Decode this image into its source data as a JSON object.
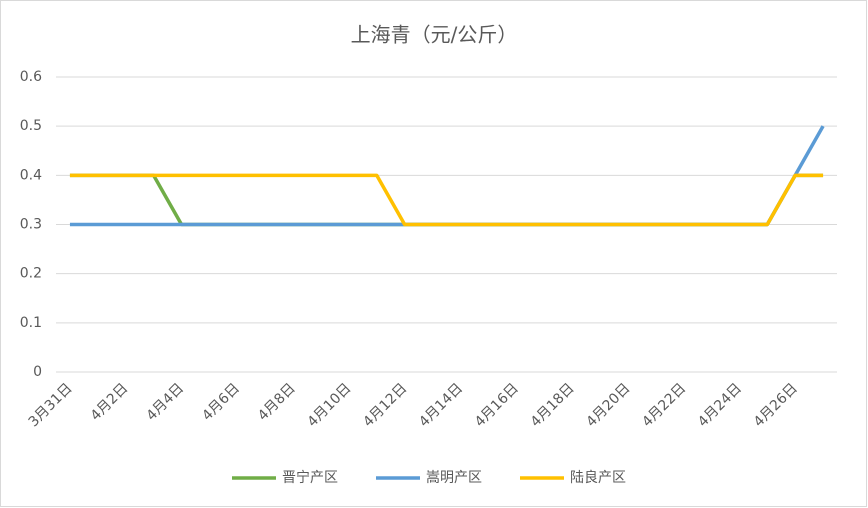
{
  "chart_data": {
    "type": "line",
    "title": "上海青（元/公斤）",
    "categories": [
      "3月31日",
      null,
      "4月2日",
      null,
      "4月4日",
      null,
      "4月6日",
      null,
      "4月8日",
      null,
      "4月10日",
      null,
      "4月12日",
      null,
      "4月14日",
      null,
      "4月16日",
      null,
      "4月18日",
      null,
      "4月20日",
      null,
      "4月22日",
      null,
      "4月24日",
      null,
      "4月26日",
      null
    ],
    "series": [
      {
        "name": "晋宁产区",
        "color": "#70ad47",
        "values": [
          0.4,
          0.4,
          0.4,
          0.4,
          0.3,
          0.3,
          0.3,
          0.3,
          0.3,
          0.3,
          0.3,
          0.3,
          0.3,
          0.3,
          0.3,
          0.3,
          0.3,
          0.3,
          0.3,
          0.3,
          0.3,
          0.3,
          0.3,
          0.3,
          0.3,
          0.3,
          0.4,
          0.4
        ]
      },
      {
        "name": "嵩明产区",
        "color": "#5b9bd5",
        "values": [
          0.3,
          0.3,
          0.3,
          0.3,
          0.3,
          0.3,
          0.3,
          0.3,
          0.3,
          0.3,
          0.3,
          0.3,
          0.3,
          0.3,
          0.3,
          0.3,
          0.3,
          0.3,
          0.3,
          0.3,
          0.3,
          0.3,
          0.3,
          0.3,
          0.3,
          0.3,
          0.4,
          0.5
        ]
      },
      {
        "name": "陆良产区",
        "color": "#ffc000",
        "values": [
          0.4,
          0.4,
          0.4,
          0.4,
          0.4,
          0.4,
          0.4,
          0.4,
          0.4,
          0.4,
          0.4,
          0.4,
          0.3,
          0.3,
          0.3,
          0.3,
          0.3,
          0.3,
          0.3,
          0.3,
          0.3,
          0.3,
          0.3,
          0.3,
          0.3,
          0.3,
          0.4,
          0.4
        ]
      }
    ],
    "ylim": [
      0,
      0.6
    ],
    "yticks": [
      0,
      0.1,
      0.2,
      0.3,
      0.4,
      0.5,
      0.6
    ],
    "grid": true,
    "legend": "bottom"
  }
}
